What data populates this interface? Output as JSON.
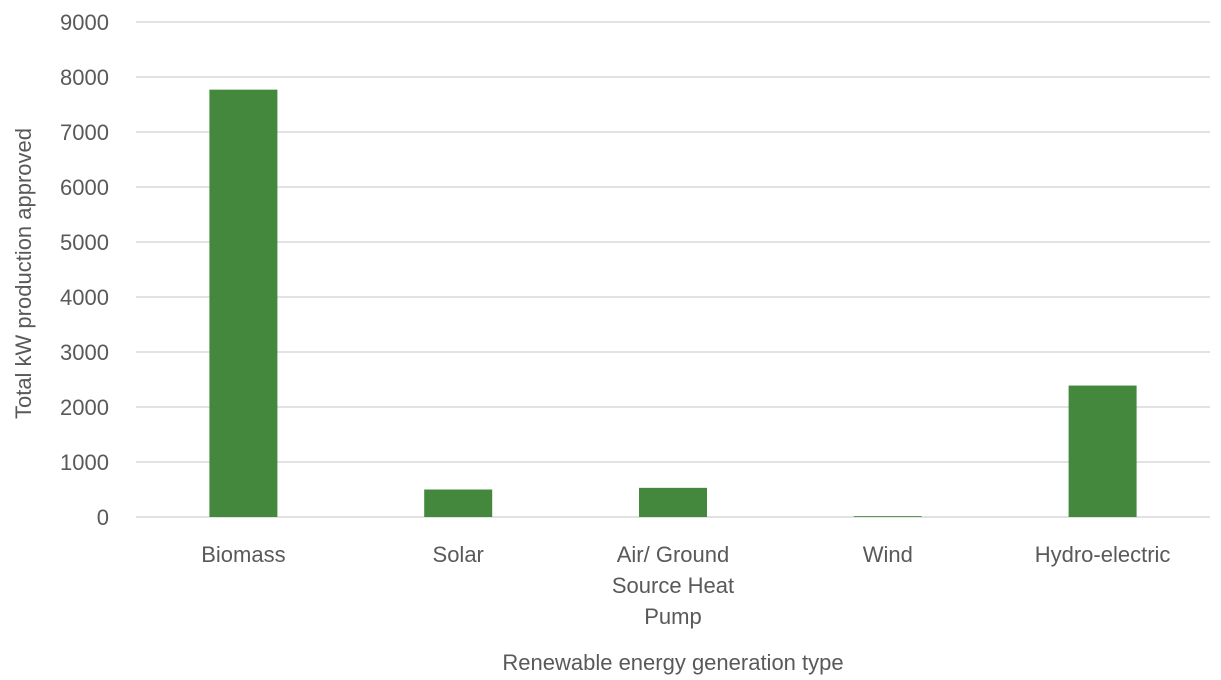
{
  "chart_data": {
    "type": "bar",
    "title": "",
    "xlabel": "Renewable energy generation type",
    "ylabel": "Total kW production approved",
    "categories": [
      [
        "Biomass"
      ],
      [
        "Solar"
      ],
      [
        "Air/ Ground",
        "Source Heat",
        "Pump"
      ],
      [
        "Wind"
      ],
      [
        "Hydro-electric"
      ]
    ],
    "values": [
      7770,
      500,
      530,
      15,
      2390
    ],
    "ylim": [
      0,
      9000
    ],
    "yticks": [
      0,
      1000,
      2000,
      3000,
      4000,
      5000,
      6000,
      7000,
      8000,
      9000
    ],
    "grid": true,
    "legend": "none",
    "colors": {
      "bar": "#44883e",
      "grid": "#d9d9d9",
      "text": "#595959"
    }
  }
}
